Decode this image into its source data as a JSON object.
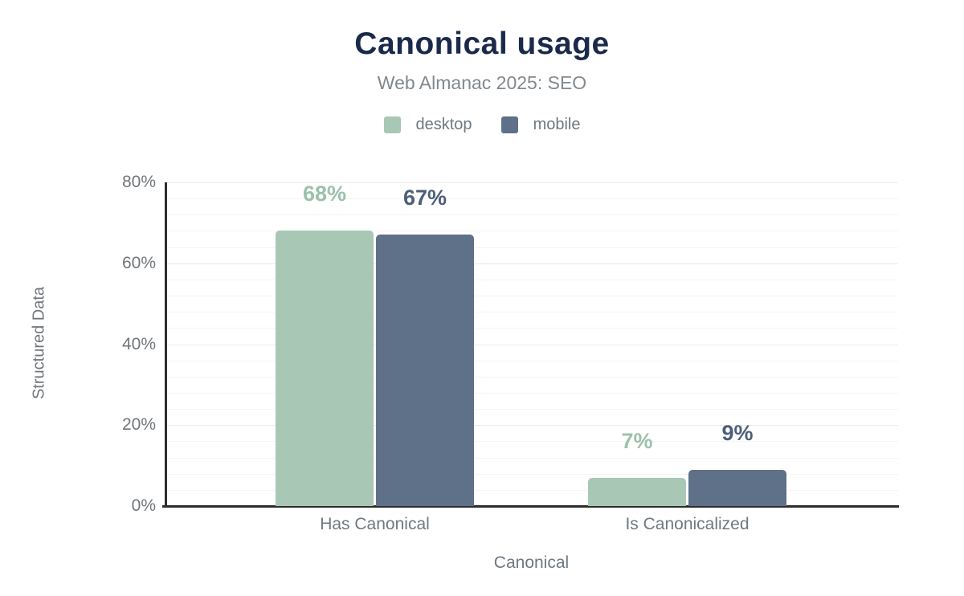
{
  "chart_data": {
    "type": "bar",
    "title": "Canonical usage",
    "subtitle": "Web Almanac 2025: SEO",
    "xlabel": "Canonical",
    "ylabel": "Structured Data",
    "categories": [
      "Has Canonical",
      "Is Canonicalized"
    ],
    "series": [
      {
        "name": "desktop",
        "values": [
          68,
          7
        ],
        "labels": [
          "68%",
          "7%"
        ],
        "color": "#a8c8b5",
        "label_color": "#9cc0ac"
      },
      {
        "name": "mobile",
        "values": [
          67,
          9
        ],
        "labels": [
          "67%",
          "9%"
        ],
        "color": "#5f7089",
        "label_color": "#4d5e7a"
      }
    ],
    "ylim": [
      0,
      80
    ],
    "yticks": [
      {
        "value": 0,
        "label": "0%"
      },
      {
        "value": 20,
        "label": "20%"
      },
      {
        "value": 40,
        "label": "40%"
      },
      {
        "value": 60,
        "label": "60%"
      },
      {
        "value": 80,
        "label": "80%"
      }
    ],
    "grid": {
      "on": true,
      "minor_step": 4,
      "major_step": 20
    },
    "legend_position": "top",
    "colors": {
      "title": "#1b2a4b",
      "subtitle": "#82888e",
      "axis_text": "#71767b",
      "axis_line": "#2d2d2d"
    }
  }
}
